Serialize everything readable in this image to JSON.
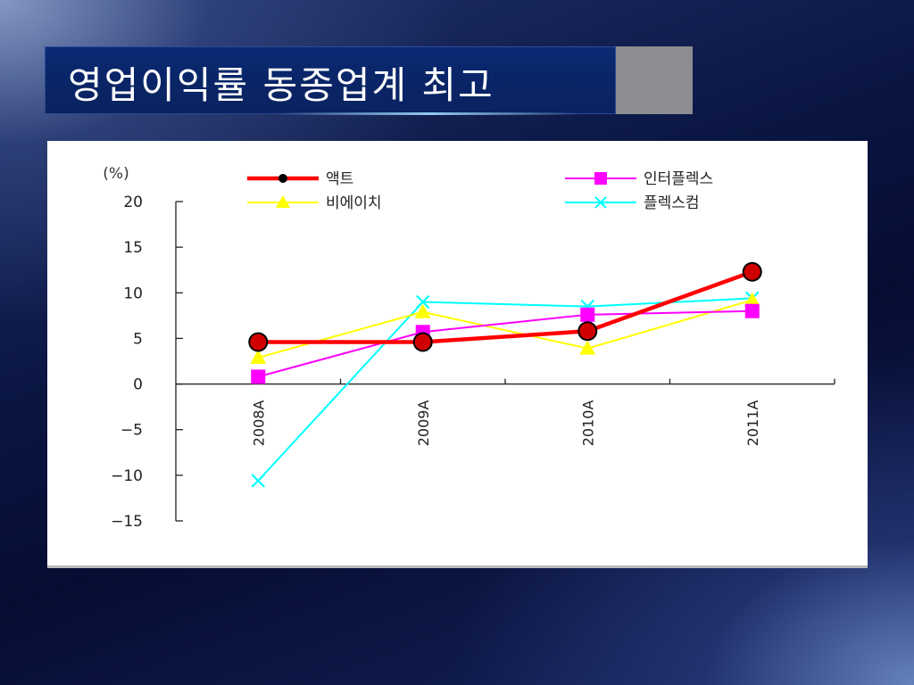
{
  "slide": {
    "title": "영업이익률 동종업계 최고"
  },
  "chart_data": {
    "type": "line",
    "unit_label": "(%)",
    "categories": [
      "2008A",
      "2009A",
      "2010A",
      "2011A"
    ],
    "ylim": [
      -15,
      20
    ],
    "yticks": [
      20,
      15,
      10,
      5,
      0,
      -5,
      -10,
      -15
    ],
    "ytick_labels": [
      "20",
      "15",
      "10",
      "5",
      "0",
      "−5",
      "−10",
      "−15"
    ],
    "legend_placement": "top",
    "series": [
      {
        "name": "액트",
        "values": [
          4.6,
          4.6,
          5.8,
          12.3
        ],
        "color": "#ff0000",
        "marker": "circle"
      },
      {
        "name": "인터플렉스",
        "values": [
          0.8,
          5.7,
          7.6,
          8.0
        ],
        "color": "#ff00ff",
        "marker": "square"
      },
      {
        "name": "비에이치",
        "values": [
          2.9,
          7.9,
          3.9,
          9.2
        ],
        "color": "#ffff00",
        "marker": "triangle"
      },
      {
        "name": "플렉스컴",
        "values": [
          -10.6,
          9.0,
          8.5,
          9.4
        ],
        "color": "#00ffff",
        "marker": "x"
      }
    ]
  }
}
